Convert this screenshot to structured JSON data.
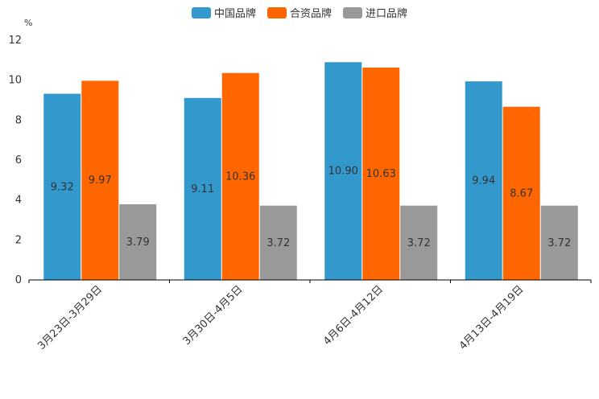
{
  "chart_data": {
    "type": "bar",
    "title": "",
    "ylabel": "%",
    "xlabel": "",
    "ylim": [
      0,
      12
    ],
    "yticks": [
      0,
      2,
      4,
      6,
      8,
      10,
      12
    ],
    "categories": [
      "3月23日-3月29日",
      "3月30日-4月5日",
      "4月6日-4月12日",
      "4月13日-4月19日"
    ],
    "series": [
      {
        "name": "中国品牌",
        "color": "#3399cc",
        "values": [
          9.32,
          9.11,
          10.9,
          9.94
        ],
        "labels": [
          "9.32",
          "9.11",
          "10.90",
          "9.94"
        ]
      },
      {
        "name": "合资品牌",
        "color": "#ff6600",
        "values": [
          9.97,
          10.36,
          10.63,
          8.67
        ],
        "labels": [
          "9.97",
          "10.36",
          "10.63",
          "8.67"
        ]
      },
      {
        "name": "进口品牌",
        "color": "#999999",
        "values": [
          3.79,
          3.72,
          3.72,
          3.72
        ],
        "labels": [
          "3.79",
          "3.72",
          "3.72",
          "3.72"
        ]
      }
    ],
    "legend_position": "top-center",
    "grid": false
  }
}
